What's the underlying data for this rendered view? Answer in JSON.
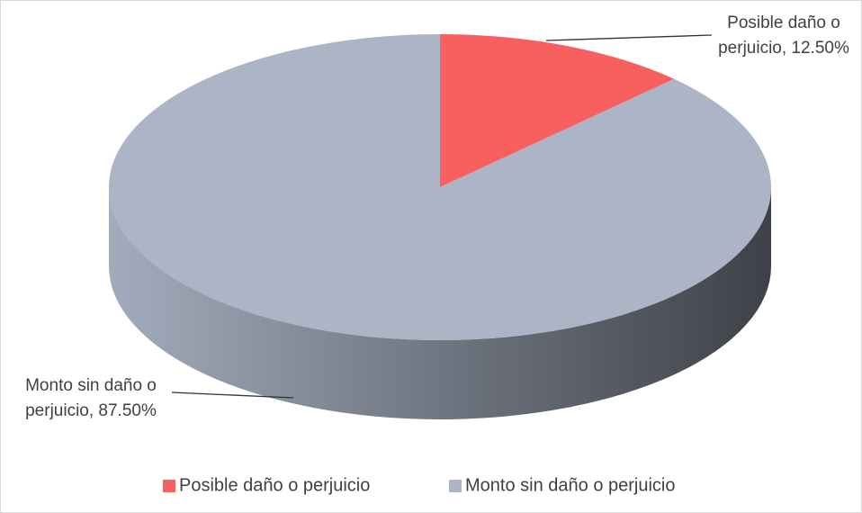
{
  "chart_data": {
    "type": "pie3d",
    "categories": [
      "Posible daño o perjuicio",
      "Monto sin daño o perjuicio"
    ],
    "values": [
      12.5,
      87.5
    ],
    "data_labels": [
      "Posible daño o perjuicio, 12.50%",
      "Monto sin daño o perjuicio, 87.50%"
    ],
    "colors": [
      "#f86060",
      "#abb5c6"
    ],
    "legend": "bottom"
  }
}
